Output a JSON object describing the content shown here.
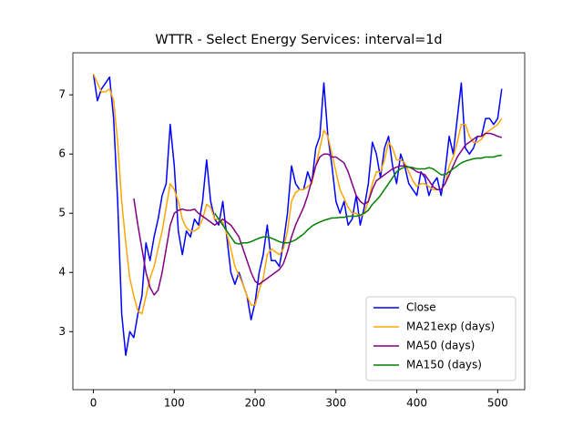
{
  "chart_data": {
    "type": "line",
    "title": "WTTR - Select Energy Services: interval=1d",
    "xlim": [
      -25.4,
      533.4
    ],
    "ylim": [
      2.02,
      7.71
    ],
    "xticks": [
      0,
      100,
      200,
      300,
      400,
      500
    ],
    "yticks": [
      3,
      4,
      5,
      6,
      7
    ],
    "legend": "lower right",
    "grid": false,
    "x": [
      0,
      5,
      10,
      15,
      20,
      25,
      30,
      35,
      40,
      45,
      50,
      55,
      60,
      65,
      70,
      75,
      80,
      85,
      90,
      95,
      100,
      105,
      110,
      115,
      120,
      125,
      130,
      135,
      140,
      145,
      150,
      155,
      160,
      165,
      170,
      175,
      180,
      185,
      190,
      195,
      200,
      205,
      210,
      215,
      220,
      225,
      230,
      235,
      240,
      245,
      250,
      255,
      260,
      265,
      270,
      275,
      280,
      285,
      290,
      295,
      300,
      305,
      310,
      315,
      320,
      325,
      330,
      335,
      340,
      345,
      350,
      355,
      360,
      365,
      370,
      375,
      380,
      385,
      390,
      395,
      400,
      405,
      410,
      415,
      420,
      425,
      430,
      435,
      440,
      445,
      450,
      455,
      460,
      465,
      470,
      475,
      480,
      485,
      490,
      495,
      500,
      505
    ],
    "series": [
      {
        "name": "Close",
        "color": "#0000ff",
        "values": [
          7.35,
          6.9,
          7.1,
          7.2,
          7.3,
          6.6,
          5.2,
          3.3,
          2.6,
          3.0,
          2.9,
          3.3,
          3.6,
          4.5,
          4.2,
          4.6,
          4.9,
          5.3,
          5.5,
          6.5,
          5.8,
          4.7,
          4.3,
          4.7,
          4.6,
          4.9,
          4.8,
          5.2,
          5.9,
          5.2,
          4.9,
          4.8,
          5.2,
          4.6,
          4.0,
          3.8,
          4.0,
          3.8,
          3.6,
          3.2,
          3.5,
          4.0,
          4.3,
          4.8,
          4.2,
          4.2,
          4.1,
          4.5,
          5.0,
          5.8,
          5.5,
          5.4,
          5.4,
          5.7,
          5.5,
          6.1,
          6.3,
          7.2,
          6.3,
          5.8,
          5.2,
          5.0,
          5.2,
          4.8,
          4.9,
          5.3,
          4.8,
          5.1,
          5.5,
          6.2,
          6.0,
          5.6,
          6.1,
          6.3,
          5.8,
          5.5,
          6.0,
          5.8,
          5.5,
          5.4,
          5.3,
          5.7,
          5.6,
          5.3,
          5.5,
          5.6,
          5.3,
          5.7,
          6.3,
          6.0,
          6.6,
          7.2,
          6.1,
          6.0,
          6.1,
          6.3,
          6.3,
          6.6,
          6.6,
          6.5,
          6.6,
          7.1
        ]
      },
      {
        "name": "MA21exp (days)",
        "color": "#ffa500",
        "values": [
          7.35,
          7.2,
          7.05,
          7.05,
          7.1,
          6.9,
          6.2,
          5.2,
          4.5,
          3.9,
          3.6,
          3.35,
          3.3,
          3.6,
          3.9,
          4.1,
          4.4,
          4.7,
          5.1,
          5.5,
          5.4,
          5.2,
          4.9,
          4.75,
          4.7,
          4.7,
          4.75,
          4.9,
          5.15,
          5.1,
          4.9,
          4.9,
          4.85,
          4.65,
          4.4,
          4.1,
          3.95,
          3.8,
          3.6,
          3.45,
          3.45,
          3.7,
          3.9,
          4.3,
          4.4,
          4.35,
          4.3,
          4.4,
          4.7,
          5.2,
          5.35,
          5.4,
          5.4,
          5.45,
          5.5,
          5.8,
          6.1,
          6.4,
          6.3,
          6.0,
          5.7,
          5.4,
          5.25,
          5.1,
          5.0,
          5.0,
          4.95,
          5.0,
          5.2,
          5.5,
          5.7,
          5.7,
          5.9,
          6.2,
          6.1,
          5.9,
          5.9,
          5.85,
          5.7,
          5.55,
          5.45,
          5.5,
          5.5,
          5.45,
          5.4,
          5.4,
          5.4,
          5.5,
          5.8,
          5.95,
          6.2,
          6.5,
          6.5,
          6.3,
          6.2,
          6.2,
          6.25,
          6.35,
          6.4,
          6.45,
          6.5,
          6.6
        ]
      },
      {
        "name": "MA50 (days)",
        "color": "#800080",
        "values": [
          null,
          null,
          null,
          null,
          null,
          null,
          null,
          null,
          null,
          null,
          5.25,
          4.8,
          4.4,
          4.0,
          3.75,
          3.62,
          3.7,
          4.0,
          4.4,
          4.8,
          5.0,
          5.05,
          5.07,
          5.05,
          5.05,
          5.07,
          5.0,
          4.95,
          4.9,
          4.85,
          4.8,
          4.85,
          4.9,
          4.85,
          4.8,
          4.7,
          4.6,
          4.4,
          4.2,
          4.0,
          3.85,
          3.8,
          3.85,
          3.9,
          3.95,
          4.0,
          4.05,
          4.15,
          4.35,
          4.6,
          4.8,
          4.95,
          5.1,
          5.3,
          5.55,
          5.8,
          5.95,
          6.0,
          6.0,
          5.95,
          5.95,
          5.9,
          5.85,
          5.7,
          5.5,
          5.3,
          5.2,
          5.15,
          5.2,
          5.4,
          5.55,
          5.6,
          5.65,
          5.7,
          5.75,
          5.78,
          5.8,
          5.8,
          5.78,
          5.75,
          5.7,
          5.68,
          5.65,
          5.55,
          5.45,
          5.4,
          5.4,
          5.5,
          5.65,
          5.8,
          5.95,
          6.05,
          6.15,
          6.2,
          6.25,
          6.3,
          6.3,
          6.35,
          6.35,
          6.33,
          6.3,
          6.28
        ]
      },
      {
        "name": "MA150 (days)",
        "color": "#008000",
        "values": [
          null,
          null,
          null,
          null,
          null,
          null,
          null,
          null,
          null,
          null,
          null,
          null,
          null,
          null,
          null,
          null,
          null,
          null,
          null,
          null,
          null,
          null,
          null,
          null,
          null,
          null,
          null,
          null,
          null,
          null,
          5.0,
          4.9,
          4.8,
          4.7,
          4.6,
          4.5,
          4.48,
          4.5,
          4.5,
          4.52,
          4.55,
          4.58,
          4.6,
          4.6,
          4.58,
          4.55,
          4.52,
          4.5,
          4.5,
          4.52,
          4.55,
          4.6,
          4.65,
          4.72,
          4.78,
          4.82,
          4.85,
          4.88,
          4.9,
          4.92,
          4.92,
          4.93,
          4.93,
          4.95,
          4.95,
          4.95,
          4.97,
          5.0,
          5.05,
          5.15,
          5.22,
          5.3,
          5.4,
          5.5,
          5.6,
          5.7,
          5.75,
          5.78,
          5.78,
          5.77,
          5.75,
          5.75,
          5.75,
          5.77,
          5.75,
          5.7,
          5.65,
          5.65,
          5.7,
          5.75,
          5.8,
          5.85,
          5.88,
          5.9,
          5.92,
          5.93,
          5.93,
          5.95,
          5.95,
          5.95,
          5.97,
          5.98
        ]
      }
    ]
  }
}
